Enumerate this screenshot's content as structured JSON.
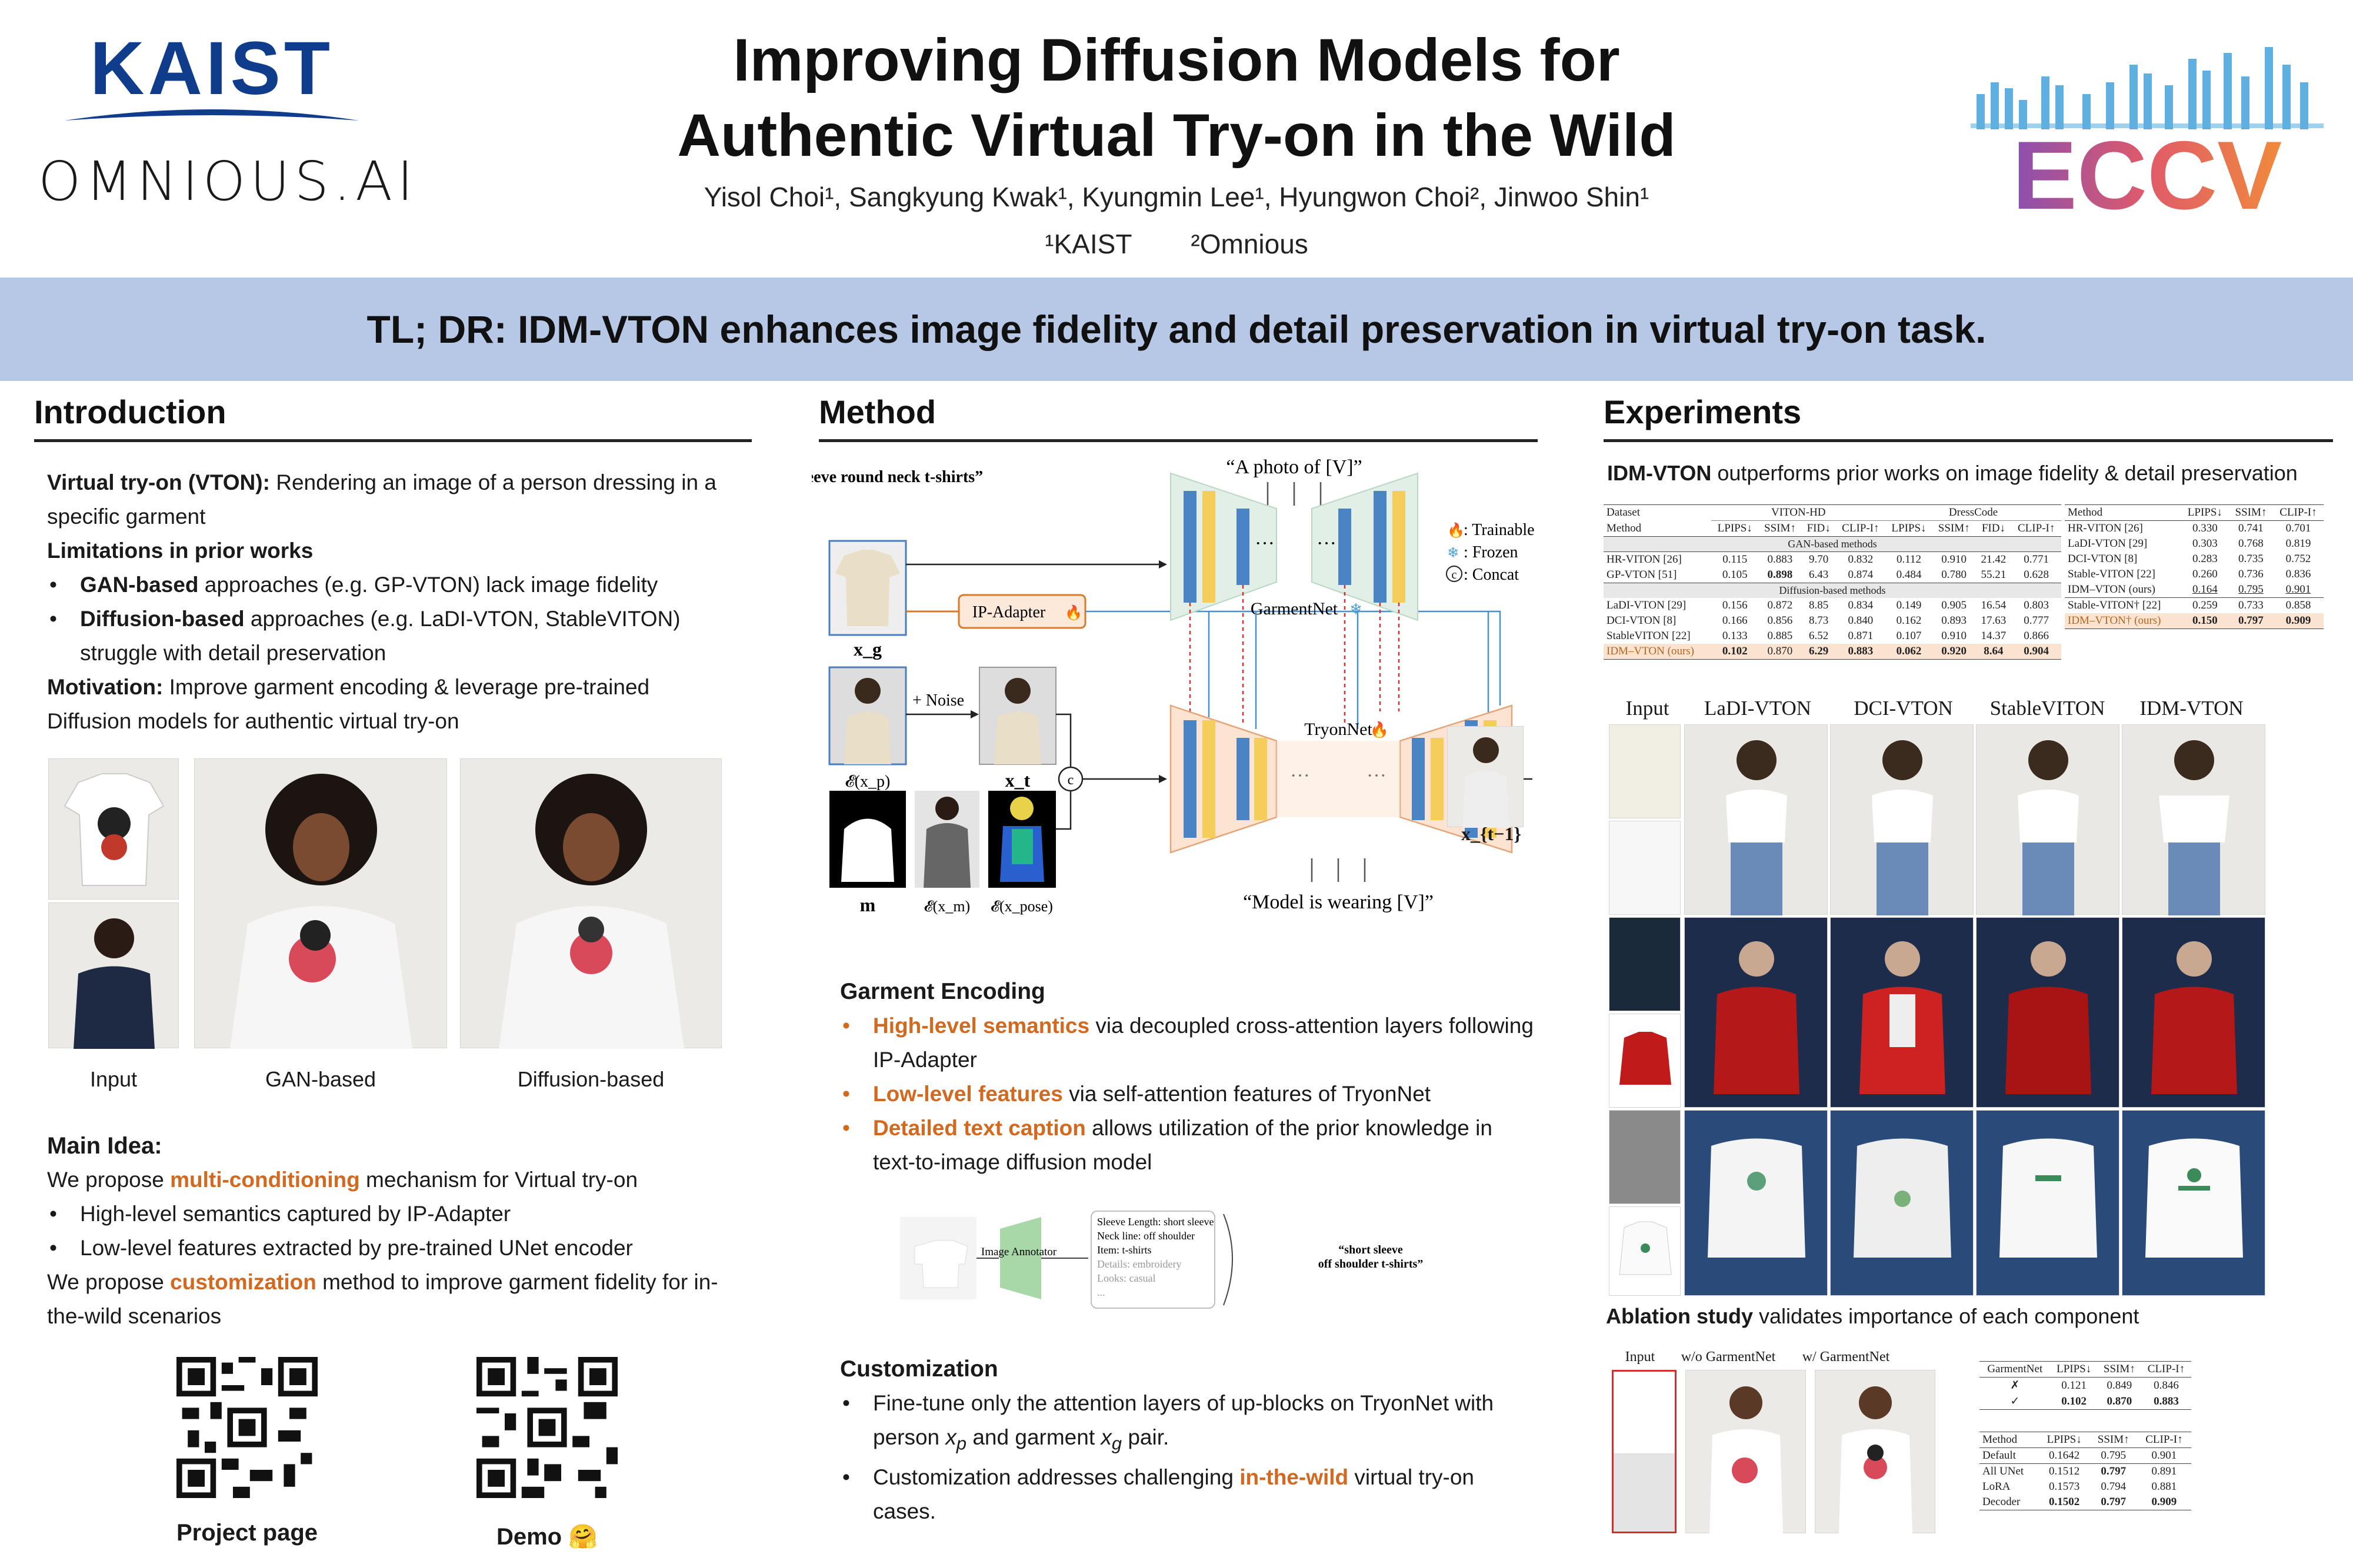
{
  "header": {
    "title_line1": "Improving Diffusion Models for",
    "title_line2": "Authentic Virtual Try-on in the Wild",
    "authors": "Yisol Choi¹, Sangkyung Kwak¹, Kyungmin Lee¹, Hyungwon Choi², Jinwoo Shin¹",
    "affil1": "¹KAIST",
    "affil2": "²Omnious",
    "logo_kaist": "KAIST",
    "logo_omnious": "OMNIOUS.AI",
    "logo_eccv": "ECCV"
  },
  "tldr": "TL; DR: IDM-VTON enhances image fidelity and detail preservation in virtual try-on task.",
  "intro": {
    "heading": "Introduction",
    "vton_label": "Virtual try-on (VTON):",
    "vton_text": " Rendering an image of a person dressing in a specific garment",
    "limits_label": "Limitations in prior works",
    "gan_label": "GAN-based",
    "gan_text": " approaches (e.g. GP-VTON) lack image fidelity",
    "diff_label": "Diffusion-based",
    "diff_text": " approaches (e.g. LaDI-VTON, StableVITON) struggle with detail preservation",
    "motivation_label": "Motivation:",
    "motivation_text": " Improve garment encoding & leverage pre-trained Diffusion models for authentic virtual try-on",
    "captions": [
      "Input",
      "GAN-based",
      "Diffusion-based"
    ],
    "main_idea_label": "Main Idea:",
    "we_propose": "We propose ",
    "multi_cond": "multi-conditioning",
    "multi_cond_rest": " mechanism for Virtual try-on",
    "b1": "High-level semantics captured by IP-Adapter",
    "b2": "Low-level features extracted by pre-trained UNet encoder",
    "customization": "customization",
    "custom_rest": " method to improve garment fidelity for in-the-wild scenarios",
    "qr1_label": "Project page",
    "qr2_label": "Demo 🤗"
  },
  "method": {
    "heading": "Method",
    "garment_caption": "“short sleeve round neck t-shirts”",
    "photo_prompt": "“A photo of [V]”",
    "model_prompt": "“Model is wearing [V]”",
    "ip_adapter": "IP-Adapter",
    "garmentnet": "GarmentNet",
    "tryonnet": "TryonNet",
    "noise": "+ Noise",
    "legend_trainable": ": Trainable",
    "legend_frozen": ": Frozen",
    "legend_concat": ": Concat",
    "concat_symbol": "c",
    "label_xg": "x_g",
    "label_exp": "𝓔(x_p)",
    "label_xt": "x_t",
    "label_m": "m",
    "label_exm": "𝓔(x_m)",
    "label_expose": "𝓔(x_pose)",
    "label_xt1": "x_{t−1}",
    "ellipsis": "···",
    "ge_heading": "Garment Encoding",
    "ge1_hl": "High-level semantics",
    "ge1_rest": " via decoupled cross-attention layers following IP-Adapter",
    "ge2_hl": "Low-level features",
    "ge2_rest": " via self-attention features of TryonNet",
    "ge3_hl": "Detailed text caption",
    "ge3_rest": " allows utilization of the prior knowledge in text-to-image diffusion model",
    "annotator": "Image Annotator",
    "annot_lines": [
      "Sleeve Length: short sleeve",
      "Neck line: off shoulder",
      "Item: t-shirts",
      "Details: embroidery",
      "Looks: casual",
      "..."
    ],
    "annot_output": "“short sleeve off shoulder t-shirts”",
    "cu_heading": "Customization",
    "cu1a": "Fine-tune only the attention layers of up-blocks on TryonNet with person ",
    "cu1_xp": "x",
    "cu1_xp_sub": "p",
    "cu1b": " and garment ",
    "cu1_xg": "x",
    "cu1_xg_sub": "g",
    "cu1c": " pair.",
    "cu2a": "Customization addresses challenging ",
    "cu2_hl": "in-the-wild",
    "cu2b": " virtual try-on cases."
  },
  "experiments": {
    "heading": "Experiments",
    "lead_bold": "IDM-VTON",
    "lead_rest": " outperforms prior works on image fidelity & detail preservation",
    "table1": {
      "col_dataset": "Dataset",
      "viton": "VITON-HD",
      "dresscode": "DressCode",
      "col_method": "Method",
      "metrics": [
        "LPIPS↓",
        "SSIM↑",
        "FID↓",
        "CLIP-I↑",
        "LPIPS↓",
        "SSIM↑",
        "FID↓",
        "CLIP-I↑"
      ],
      "gan_section": "GAN-based methods",
      "diff_section": "Diffusion-based methods",
      "gan_rows": [
        {
          "name": "HR-VITON [26]",
          "v": [
            "0.115",
            "0.883",
            "9.70",
            "0.832",
            "0.112",
            "0.910",
            "21.42",
            "0.771"
          ]
        },
        {
          "name": "GP-VTON [51]",
          "v": [
            "0.105",
            "0.898",
            "6.43",
            "0.874",
            "0.484",
            "0.780",
            "55.21",
            "0.628"
          ]
        }
      ],
      "diff_rows": [
        {
          "name": "LaDI-VTON [29]",
          "v": [
            "0.156",
            "0.872",
            "8.85",
            "0.834",
            "0.149",
            "0.905",
            "16.54",
            "0.803"
          ]
        },
        {
          "name": "DCI-VTON [8]",
          "v": [
            "0.166",
            "0.856",
            "8.73",
            "0.840",
            "0.162",
            "0.893",
            "17.63",
            "0.777"
          ]
        },
        {
          "name": "StableVITON [22]",
          "v": [
            "0.133",
            "0.885",
            "6.52",
            "0.871",
            "0.107",
            "0.910",
            "14.37",
            "0.866"
          ]
        },
        {
          "name": "IDM–VTON (ours)",
          "v": [
            "0.102",
            "0.870",
            "6.29",
            "0.883",
            "0.062",
            "0.920",
            "8.64",
            "0.904"
          ]
        }
      ]
    },
    "table2": {
      "col_method": "Method",
      "metrics": [
        "LPIPS↓",
        "SSIM↑",
        "CLIP-I↑"
      ],
      "rows": [
        {
          "name": "HR-VITON [26]",
          "v": [
            "0.330",
            "0.741",
            "0.701"
          ]
        },
        {
          "name": "LaDI-VTON [29]",
          "v": [
            "0.303",
            "0.768",
            "0.819"
          ]
        },
        {
          "name": "DCI-VTON [8]",
          "v": [
            "0.283",
            "0.735",
            "0.752"
          ]
        },
        {
          "name": "Stable-VITON [22]",
          "v": [
            "0.260",
            "0.736",
            "0.836"
          ]
        },
        {
          "name": "IDM–VTON (ours)",
          "v": [
            "0.164",
            "0.795",
            "0.901"
          ]
        }
      ],
      "rows2": [
        {
          "name": "Stable-VITON† [22]",
          "v": [
            "0.259",
            "0.733",
            "0.858"
          ]
        },
        {
          "name": "IDM–VTON† (ours)",
          "v": [
            "0.150",
            "0.797",
            "0.909"
          ]
        }
      ]
    },
    "grid_headers": [
      "Input",
      "LaDI-VTON",
      "DCI-VTON",
      "StableVITON",
      "IDM-VTON"
    ],
    "ablation_bold": "Ablation study",
    "ablation_rest": " validates importance of each component",
    "abl_captions": [
      "Input",
      "w/o GarmentNet",
      "w/ GarmentNet"
    ],
    "table3": {
      "cols": [
        "GarmentNet",
        "LPIPS↓",
        "SSIM↑",
        "CLIP-I↑"
      ],
      "rows": [
        {
          "name": "✗",
          "v": [
            "0.121",
            "0.849",
            "0.846"
          ]
        },
        {
          "name": "✓",
          "v": [
            "0.102",
            "0.870",
            "0.883"
          ]
        }
      ]
    },
    "table4": {
      "cols": [
        "Method",
        "LPIPS↓",
        "SSIM↑",
        "CLIP-I↑"
      ],
      "rows": [
        {
          "name": "Default",
          "v": [
            "0.1642",
            "0.795",
            "0.901"
          ]
        },
        {
          "name": "All UNet",
          "v": [
            "0.1512",
            "0.797",
            "0.891"
          ]
        },
        {
          "name": "LoRA",
          "v": [
            "0.1573",
            "0.794",
            "0.881"
          ]
        },
        {
          "name": "Decoder",
          "v": [
            "0.1502",
            "0.797",
            "0.909"
          ]
        }
      ]
    }
  }
}
